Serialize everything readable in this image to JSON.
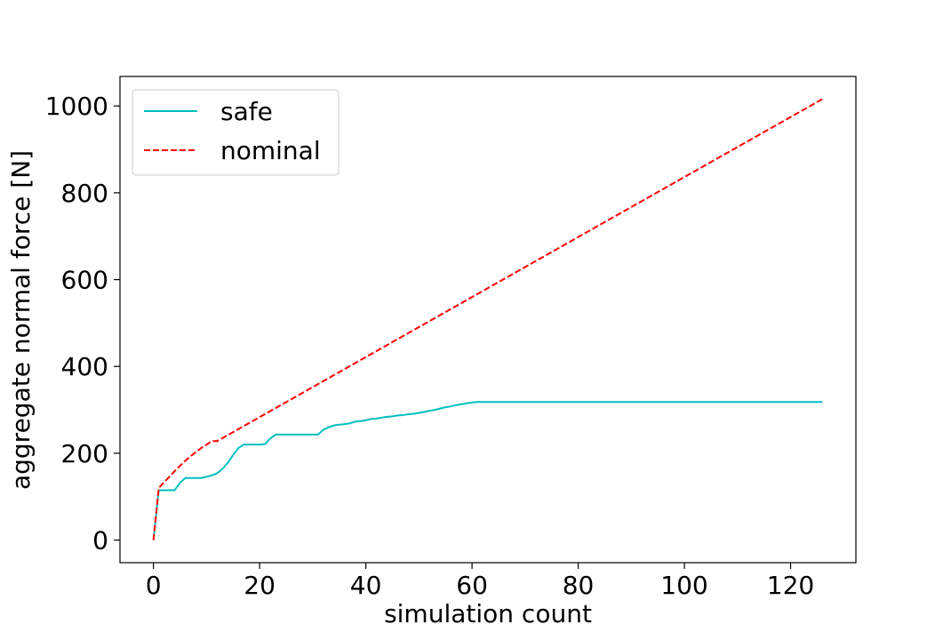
{
  "chart_data": {
    "type": "line",
    "xlabel": "simulation count",
    "ylabel": "aggregate normal force [N]",
    "xlim": [
      -6.3,
      132.3
    ],
    "ylim": [
      -52,
      1068
    ],
    "xticks": [
      0,
      20,
      40,
      60,
      80,
      100,
      120
    ],
    "yticks": [
      0,
      200,
      400,
      600,
      800,
      1000
    ],
    "grid": false,
    "legend_position": "top-left",
    "series": [
      {
        "name": "safe",
        "color": "#00bfbf",
        "style": "solid",
        "x": [
          0,
          1,
          2,
          3,
          4,
          5,
          6,
          7,
          8,
          9,
          10,
          11,
          12,
          13,
          14,
          15,
          16,
          17,
          18,
          19,
          20,
          21,
          22,
          23,
          24,
          25,
          26,
          27,
          28,
          29,
          30,
          31,
          32,
          33,
          34,
          35,
          36,
          37,
          38,
          39,
          40,
          41,
          42,
          43,
          44,
          45,
          46,
          47,
          48,
          49,
          50,
          51,
          52,
          53,
          54,
          55,
          56,
          57,
          58,
          59,
          60,
          61,
          62,
          126
        ],
        "y": [
          0,
          115,
          115,
          115,
          115,
          132,
          143,
          143,
          143,
          143,
          146,
          149,
          154,
          164,
          178,
          196,
          212,
          220,
          220,
          220,
          220,
          221,
          234,
          243,
          243,
          243,
          243,
          243,
          243,
          243,
          243,
          243,
          254,
          260,
          264,
          266,
          267,
          269,
          273,
          274,
          276,
          279,
          280,
          282,
          284,
          285,
          287,
          288,
          290,
          291,
          293,
          295,
          298,
          300,
          303,
          306,
          308,
          311,
          313,
          315,
          317,
          318,
          318,
          318
        ]
      },
      {
        "name": "nominal",
        "color": "#ff0000",
        "style": "dashed",
        "x": [
          0,
          1,
          2,
          3,
          4,
          5,
          6,
          7,
          8,
          9,
          10,
          11,
          12,
          126
        ],
        "y": [
          0,
          120,
          133,
          146,
          159,
          171,
          183,
          193,
          203,
          212,
          220,
          228,
          228,
          1016
        ]
      }
    ]
  }
}
